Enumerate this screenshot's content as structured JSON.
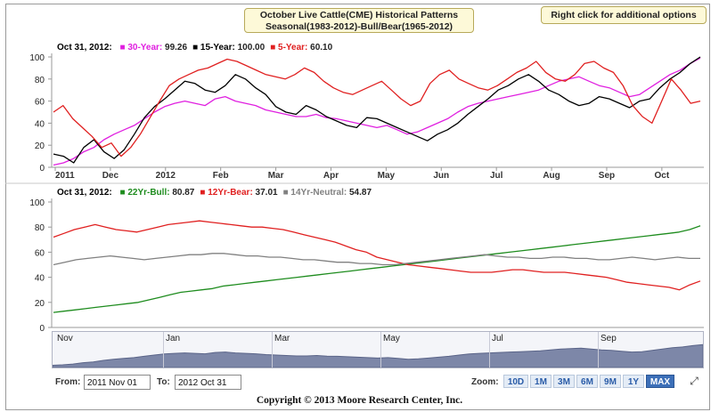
{
  "header": {
    "title_line1": "October Live Cattle(CME) Historical Patterns",
    "title_line2": "Seasonal(1983-2012)-Bull/Bear(1965-2012)",
    "options_label": "Right click for additional options"
  },
  "top_legend": {
    "date": "Oct 31, 2012:",
    "items": [
      {
        "name": "30-Year:",
        "value": "99.26",
        "color": "#e020e0"
      },
      {
        "name": "15-Year:",
        "value": "100.00",
        "color": "#000000"
      },
      {
        "name": "5-Year:",
        "value": "60.10",
        "color": "#e02020"
      }
    ]
  },
  "bottom_legend": {
    "date": "Oct 31, 2012:",
    "items": [
      {
        "name": "22Yr-Bull:",
        "value": "80.87",
        "color": "#1e8c1e"
      },
      {
        "name": "12Yr-Bear:",
        "value": "37.01",
        "color": "#e02020"
      },
      {
        "name": "14Yr-Neutral:",
        "value": "54.87",
        "color": "#808080"
      }
    ]
  },
  "chart_data": [
    {
      "type": "line",
      "yticks": [
        0,
        20,
        40,
        60,
        80,
        100
      ],
      "ylim": [
        0,
        100
      ],
      "xlabels": [
        "2011",
        "Dec",
        "2012",
        "Feb",
        "Mar",
        "Apr",
        "May",
        "Jun",
        "Jul",
        "Aug",
        "Sep",
        "Oct"
      ],
      "grid": false,
      "series": [
        {
          "name": "30-Year",
          "color": "#e020e0",
          "values": [
            2,
            4,
            8,
            14,
            18,
            25,
            30,
            34,
            38,
            44,
            50,
            55,
            58,
            60,
            58,
            56,
            62,
            64,
            60,
            58,
            56,
            52,
            50,
            48,
            46,
            46,
            48,
            45,
            44,
            42,
            40,
            38,
            36,
            38,
            34,
            30,
            32,
            36,
            40,
            44,
            50,
            55,
            58,
            60,
            62,
            64,
            66,
            68,
            70,
            74,
            78,
            80,
            82,
            78,
            74,
            72,
            68,
            64,
            66,
            72,
            78,
            84,
            88,
            94,
            99
          ]
        },
        {
          "name": "15-Year",
          "color": "#000000",
          "values": [
            12,
            10,
            4,
            18,
            25,
            14,
            8,
            16,
            30,
            45,
            55,
            62,
            70,
            78,
            76,
            70,
            68,
            74,
            84,
            80,
            72,
            66,
            55,
            50,
            48,
            56,
            52,
            46,
            42,
            38,
            36,
            45,
            44,
            40,
            36,
            32,
            28,
            24,
            30,
            34,
            40,
            48,
            55,
            62,
            70,
            74,
            80,
            84,
            78,
            70,
            66,
            60,
            56,
            58,
            64,
            62,
            58,
            54,
            60,
            62,
            72,
            80,
            86,
            94,
            100
          ]
        },
        {
          "name": "5-Year",
          "color": "#e02020",
          "values": [
            50,
            56,
            44,
            36,
            28,
            18,
            22,
            10,
            18,
            30,
            45,
            60,
            74,
            80,
            84,
            88,
            90,
            94,
            98,
            96,
            92,
            88,
            84,
            82,
            80,
            84,
            90,
            86,
            78,
            72,
            68,
            66,
            70,
            74,
            78,
            70,
            62,
            56,
            60,
            76,
            84,
            88,
            80,
            76,
            72,
            70,
            74,
            80,
            86,
            90,
            96,
            86,
            80,
            78,
            84,
            94,
            96,
            90,
            86,
            74,
            56,
            46,
            40,
            60,
            80,
            70,
            58,
            60
          ]
        }
      ]
    },
    {
      "type": "line",
      "yticks": [
        0,
        20,
        40,
        60,
        80,
        100
      ],
      "ylim": [
        0,
        100
      ],
      "grid": false,
      "series": [
        {
          "name": "22Yr-Bull",
          "color": "#1e8c1e",
          "values": [
            12,
            13,
            14,
            15,
            16,
            17,
            18,
            19,
            20,
            22,
            24,
            26,
            28,
            29,
            30,
            31,
            33,
            34,
            35,
            36,
            37,
            38,
            39,
            40,
            41,
            42,
            43,
            44,
            45,
            46,
            47,
            48,
            49,
            50,
            51,
            52,
            53,
            54,
            55,
            56,
            57,
            58,
            59,
            60,
            61,
            62,
            63,
            64,
            65,
            66,
            67,
            68,
            69,
            70,
            71,
            72,
            73,
            74,
            75,
            76,
            78,
            81
          ]
        },
        {
          "name": "12Yr-Bear",
          "color": "#e02020",
          "values": [
            72,
            75,
            78,
            80,
            82,
            80,
            78,
            77,
            76,
            78,
            80,
            82,
            83,
            84,
            85,
            84,
            83,
            82,
            81,
            80,
            80,
            79,
            78,
            76,
            74,
            72,
            70,
            68,
            65,
            62,
            60,
            56,
            54,
            52,
            50,
            49,
            48,
            47,
            46,
            45,
            44,
            44,
            44,
            45,
            46,
            46,
            45,
            44,
            44,
            44,
            43,
            42,
            41,
            40,
            38,
            36,
            35,
            34,
            33,
            32,
            30,
            34,
            37
          ]
        },
        {
          "name": "14Yr-Neutral",
          "color": "#808080",
          "values": [
            50,
            52,
            54,
            55,
            56,
            57,
            56,
            55,
            54,
            55,
            56,
            57,
            58,
            58,
            59,
            59,
            58,
            57,
            57,
            56,
            56,
            55,
            54,
            54,
            53,
            52,
            52,
            51,
            51,
            50,
            50,
            51,
            52,
            53,
            54,
            55,
            56,
            57,
            58,
            57,
            56,
            56,
            55,
            55,
            56,
            56,
            55,
            55,
            54,
            54,
            55,
            56,
            55,
            54,
            55,
            56,
            55,
            55
          ]
        }
      ]
    }
  ],
  "navigator": {
    "labels": [
      "Nov",
      "Jan",
      "Mar",
      "May",
      "Jul",
      "Sep"
    ]
  },
  "range": {
    "from_label": "From:",
    "from_value": "2011 Nov 01",
    "to_label": "To:",
    "to_value": "2012 Oct 31"
  },
  "zoom": {
    "label": "Zoom:",
    "buttons": [
      "10D",
      "1M",
      "3M",
      "6M",
      "9M",
      "1Y",
      "MAX"
    ],
    "active": "MAX"
  },
  "footer": {
    "copyright": "Copyright © 2013 Moore Research Center, Inc."
  }
}
